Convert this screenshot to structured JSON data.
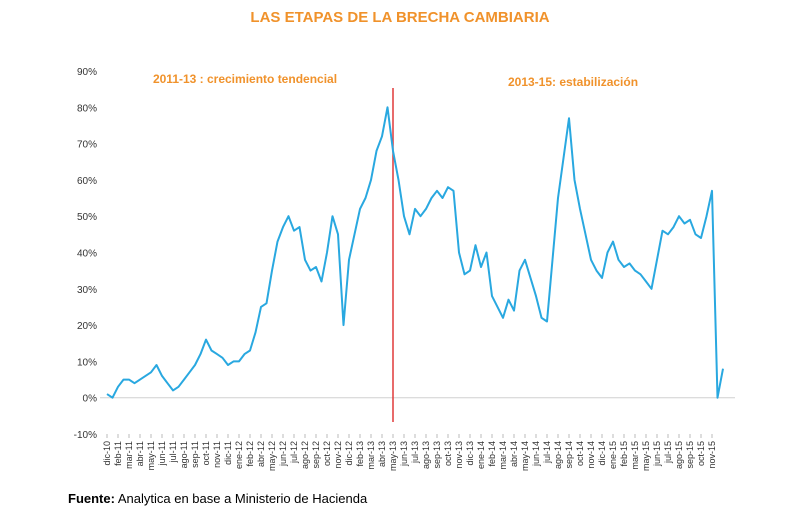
{
  "chart_data": {
    "type": "line",
    "title": "LAS ETAPAS DE LA BRECHA CAMBIARIA",
    "annotations": [
      "2011-13 : crecimiento tendencial",
      "2013-15: estabilización"
    ],
    "divider": "may-13",
    "divider_color": "#e03a3a",
    "categories": [
      "dic-10",
      null,
      "feb-11",
      null,
      "mar-11",
      null,
      "abr-11",
      null,
      "may-11",
      null,
      "jun-11",
      null,
      "jul-11",
      null,
      "ago-11",
      null,
      "sep-11",
      null,
      "oct-11",
      null,
      "nov-11",
      null,
      "dic-11",
      null,
      "ene-12",
      null,
      "feb-12",
      null,
      "abr-12",
      null,
      "may-12",
      null,
      "jun-12",
      null,
      "jul-12",
      null,
      "ago-12",
      null,
      "sep-12",
      null,
      "oct-12",
      null,
      "nov-12",
      null,
      "dic-12",
      null,
      "feb-13",
      null,
      "mar-13",
      null,
      "abr-13",
      null,
      "may-13",
      null,
      "jun-13",
      null,
      "jul-13",
      null,
      "ago-13",
      null,
      "sep-13",
      null,
      "oct-13",
      null,
      "nov-13",
      null,
      "dic-13",
      null,
      "ene-14",
      null,
      "feb-14",
      null,
      "mar-14",
      null,
      "abr-14",
      null,
      "may-14",
      null,
      "jun-14",
      null,
      "jul-14",
      null,
      "ago-14",
      null,
      "sep-14",
      null,
      "oct-14",
      null,
      "nov-14",
      null,
      "dic-14",
      null,
      "ene-15",
      null,
      "feb-15",
      null,
      "mar-15",
      null,
      "may-15",
      null,
      "jun-15",
      null,
      "jul-15",
      null,
      "ago-15",
      null,
      "sep-15",
      null,
      "oct-15",
      null,
      "nov-15",
      null,
      null
    ],
    "series": [
      {
        "color": "#29a8e0",
        "values": [
          1,
          0,
          3,
          5,
          5,
          4,
          5,
          6,
          7,
          9,
          6,
          4,
          2,
          3,
          5,
          7,
          9,
          12,
          16,
          13,
          12,
          11,
          9,
          10,
          10,
          12,
          13,
          18,
          25,
          26,
          35,
          43,
          47,
          50,
          46,
          47,
          38,
          35,
          36,
          32,
          40,
          50,
          45,
          20,
          38,
          45,
          52,
          55,
          60,
          68,
          72,
          80,
          68,
          60,
          50,
          45,
          52,
          50,
          52,
          55,
          57,
          55,
          58,
          57,
          40,
          34,
          35,
          42,
          36,
          40,
          28,
          25,
          22,
          27,
          24,
          35,
          38,
          33,
          28,
          22,
          21,
          38,
          55,
          66,
          77,
          60,
          52,
          45,
          38,
          35,
          33,
          40,
          43,
          38,
          36,
          37,
          35,
          34,
          32,
          30,
          38,
          46,
          45,
          47,
          50,
          48,
          49,
          45,
          44,
          50,
          57,
          0,
          8
        ]
      }
    ],
    "ylim": [
      -10,
      90
    ],
    "yticks": [
      {
        "value": -10,
        "label": "-10%"
      },
      {
        "value": 0,
        "label": "0%"
      },
      {
        "value": 10,
        "label": "10%"
      },
      {
        "value": 20,
        "label": "20%"
      },
      {
        "value": 30,
        "label": "30%"
      },
      {
        "value": 40,
        "label": "40%"
      },
      {
        "value": 50,
        "label": "50%"
      },
      {
        "value": 60,
        "label": "60%"
      },
      {
        "value": 70,
        "label": "70%"
      },
      {
        "value": 80,
        "label": "80%"
      },
      {
        "value": 90,
        "label": "90%"
      }
    ],
    "source": {
      "label": "Fuente:",
      "text": "Analytica en base a Ministerio de Hacienda"
    }
  }
}
